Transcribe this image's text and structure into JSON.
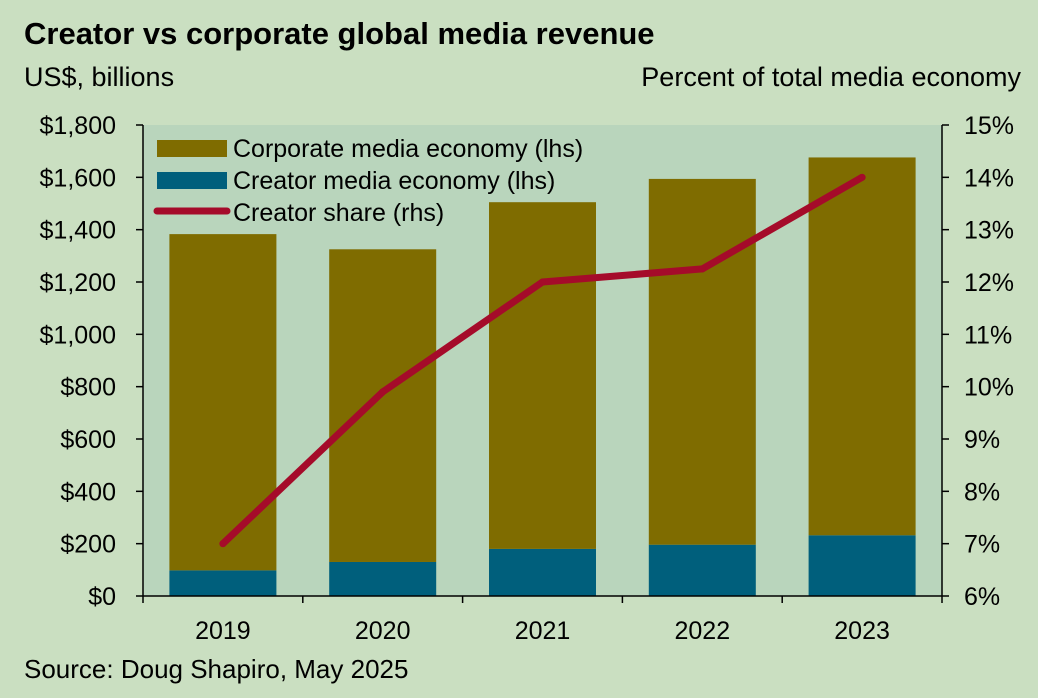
{
  "title": "Creator vs corporate global media revenue",
  "left_axis_unit": "US$, billions",
  "right_axis_unit": "Percent of total media economy",
  "source": "Source: Doug Shapiro, May 2025",
  "colors": {
    "background": "#cadfc1",
    "plot_area": "#b9d5bc",
    "corporate": "#7f6c00",
    "creator": "#005f7c",
    "share_line": "#a50b2a"
  },
  "chart_data": {
    "type": "bar",
    "stacked": true,
    "categories": [
      "2019",
      "2020",
      "2021",
      "2022",
      "2023"
    ],
    "series": [
      {
        "name": "Creator media economy (lhs)",
        "axis": "left",
        "values": [
          98,
          130,
          180,
          196,
          232
        ]
      },
      {
        "name": "Corporate media economy (lhs)",
        "axis": "left",
        "values": [
          1285,
          1195,
          1325,
          1398,
          1444
        ]
      },
      {
        "name": "Creator share (rhs)",
        "axis": "right",
        "type": "line",
        "values": [
          7.0,
          9.9,
          12.0,
          12.25,
          14.0
        ]
      }
    ],
    "left_axis": {
      "ylim": [
        0,
        1800
      ],
      "ticks": [
        "$0",
        "$200",
        "$400",
        "$600",
        "$800",
        "$1,000",
        "$1,200",
        "$1,400",
        "$1,600",
        "$1,800"
      ]
    },
    "right_axis": {
      "ylim": [
        6,
        15
      ],
      "ticks": [
        "6%",
        "7%",
        "8%",
        "9%",
        "10%",
        "11%",
        "12%",
        "13%",
        "14%",
        "15%"
      ]
    },
    "legend": {
      "placement": "top-left",
      "entries": [
        "Corporate media economy (lhs)",
        "Creator media economy (lhs)",
        "Creator share (rhs)"
      ]
    },
    "grid": false
  }
}
